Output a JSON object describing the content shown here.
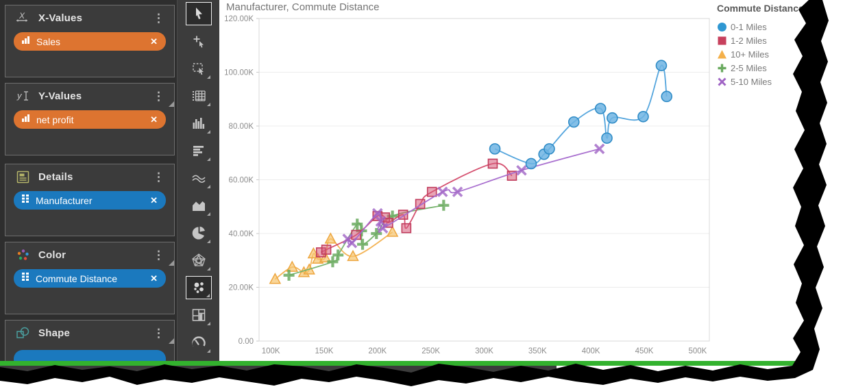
{
  "sidebar": {
    "panels": [
      {
        "id": "x-values",
        "label": "X-Values",
        "pills": [
          {
            "label": "Sales",
            "type": "measure"
          }
        ]
      },
      {
        "id": "y-values",
        "label": "Y-Values",
        "pills": [
          {
            "label": "net profit",
            "type": "measure"
          }
        ]
      },
      {
        "id": "details",
        "label": "Details",
        "pills": [
          {
            "label": "Manufacturer",
            "type": "dimension"
          }
        ]
      },
      {
        "id": "color",
        "label": "Color",
        "pills": [
          {
            "label": "Commute Distance",
            "type": "dimension"
          }
        ]
      },
      {
        "id": "shape",
        "label": "Shape",
        "pills": []
      }
    ],
    "colors": {
      "measure_pill": "#dd7430",
      "dimension_pill": "#1b79be"
    }
  },
  "toolbar": {
    "tools": [
      {
        "name": "pointer",
        "selected": true
      },
      {
        "name": "point-select",
        "selected": false
      },
      {
        "name": "rectangle-select",
        "selected": false
      },
      {
        "name": "table",
        "selected": false
      },
      {
        "name": "column-chart",
        "selected": false
      },
      {
        "name": "bar-chart",
        "selected": false
      },
      {
        "name": "line-chart",
        "selected": false
      },
      {
        "name": "area-chart",
        "selected": false
      },
      {
        "name": "pie-chart",
        "selected": false
      },
      {
        "name": "radar-chart",
        "selected": false
      },
      {
        "name": "scatter-chart",
        "selected": true
      },
      {
        "name": "treemap",
        "selected": false
      },
      {
        "name": "gauge",
        "selected": false
      }
    ]
  },
  "chart": {
    "title": "Manufacturer, Commute Distance"
  },
  "legend": {
    "title": "Commute Distance"
  },
  "chart_data": {
    "type": "scatter",
    "title": "Manufacturer, Commute Distance",
    "x_unit": "Sales (thousands)",
    "y_unit": "net profit (thousands)",
    "x_range": [
      89,
      511
    ],
    "y_range": [
      0,
      120
    ],
    "x_ticks": [
      {
        "v": 100,
        "label": "100K"
      },
      {
        "v": 150,
        "label": "150K"
      },
      {
        "v": 200,
        "label": "200K"
      },
      {
        "v": 250,
        "label": "250K"
      },
      {
        "v": 300,
        "label": "300K"
      },
      {
        "v": 350,
        "label": "350K"
      },
      {
        "v": 400,
        "label": "400K"
      },
      {
        "v": 450,
        "label": "450K"
      },
      {
        "v": 500,
        "label": "500K"
      }
    ],
    "y_ticks": [
      {
        "v": 0,
        "label": "0.00"
      },
      {
        "v": 20,
        "label": "20.00K"
      },
      {
        "v": 40,
        "label": "40.00K"
      },
      {
        "v": 60,
        "label": "60.00K"
      },
      {
        "v": 80,
        "label": "80.00K"
      },
      {
        "v": 100,
        "label": "100.00K"
      },
      {
        "v": 120,
        "label": "120.00K"
      }
    ],
    "grid": "horizontal",
    "legend_position": "right",
    "draw_order": [
      "10+ Miles",
      "2-5 Miles",
      "1-2 Miles",
      "5-10 Miles",
      "0-1 Miles"
    ],
    "series": [
      {
        "name": "0-1 Miles",
        "marker": "circle",
        "color": "#2e8bc6",
        "fill": "rgba(111,180,227,0.85)",
        "line": "#4ba0db",
        "points": [
          [
            310,
            71.5
          ],
          [
            344,
            66
          ],
          [
            356,
            69.5
          ],
          [
            361,
            71.5
          ],
          [
            384,
            81.5
          ],
          [
            409,
            86.5
          ],
          [
            415,
            75.5
          ],
          [
            420,
            83
          ],
          [
            449,
            83.5
          ],
          [
            466,
            102.5
          ],
          [
            471,
            91
          ]
        ]
      },
      {
        "name": "1-2 Miles",
        "marker": "square",
        "color": "#c13b5c",
        "fill": "rgba(214,90,120,0.55)",
        "line": "#d34868",
        "points": [
          [
            147,
            33
          ],
          [
            152,
            34
          ],
          [
            180,
            39.5
          ],
          [
            200,
            46.5
          ],
          [
            207,
            46
          ],
          [
            210,
            44
          ],
          [
            224,
            47
          ],
          [
            227,
            42
          ],
          [
            240,
            51
          ],
          [
            251,
            55.5
          ],
          [
            308,
            66
          ],
          [
            326,
            61.5
          ]
        ]
      },
      {
        "name": "10+ Miles",
        "marker": "triangle",
        "color": "#eda63f",
        "fill": "rgba(246,196,110,0.7)",
        "line": "#f2b04e",
        "points": [
          [
            104,
            23
          ],
          [
            120,
            27.5
          ],
          [
            131,
            25.5
          ],
          [
            136,
            26.5
          ],
          [
            140,
            32.5
          ],
          [
            144,
            30.5
          ],
          [
            151,
            31
          ],
          [
            156,
            38
          ],
          [
            177,
            31.5
          ],
          [
            214,
            40.5
          ]
        ]
      },
      {
        "name": "2-5 Miles",
        "marker": "plus",
        "color": "#6aaa5f",
        "fill": "none",
        "line": "#74b169",
        "points": [
          [
            117,
            24.5
          ],
          [
            158,
            29.5
          ],
          [
            163,
            32
          ],
          [
            181,
            43.5
          ],
          [
            185,
            41
          ],
          [
            186,
            36
          ],
          [
            199,
            40
          ],
          [
            214,
            46.5
          ],
          [
            262,
            50.5
          ]
        ]
      },
      {
        "name": "5-10 Miles",
        "marker": "x",
        "color": "#9f63c4",
        "fill": "none",
        "line": "#a468cc",
        "points": [
          [
            172,
            38
          ],
          [
            176,
            36.5
          ],
          [
            200,
            47.5
          ],
          [
            203,
            44.5
          ],
          [
            205,
            42
          ],
          [
            261,
            55.5
          ],
          [
            275,
            55.5
          ],
          [
            335,
            63.5
          ],
          [
            408,
            71.5
          ]
        ]
      }
    ]
  }
}
